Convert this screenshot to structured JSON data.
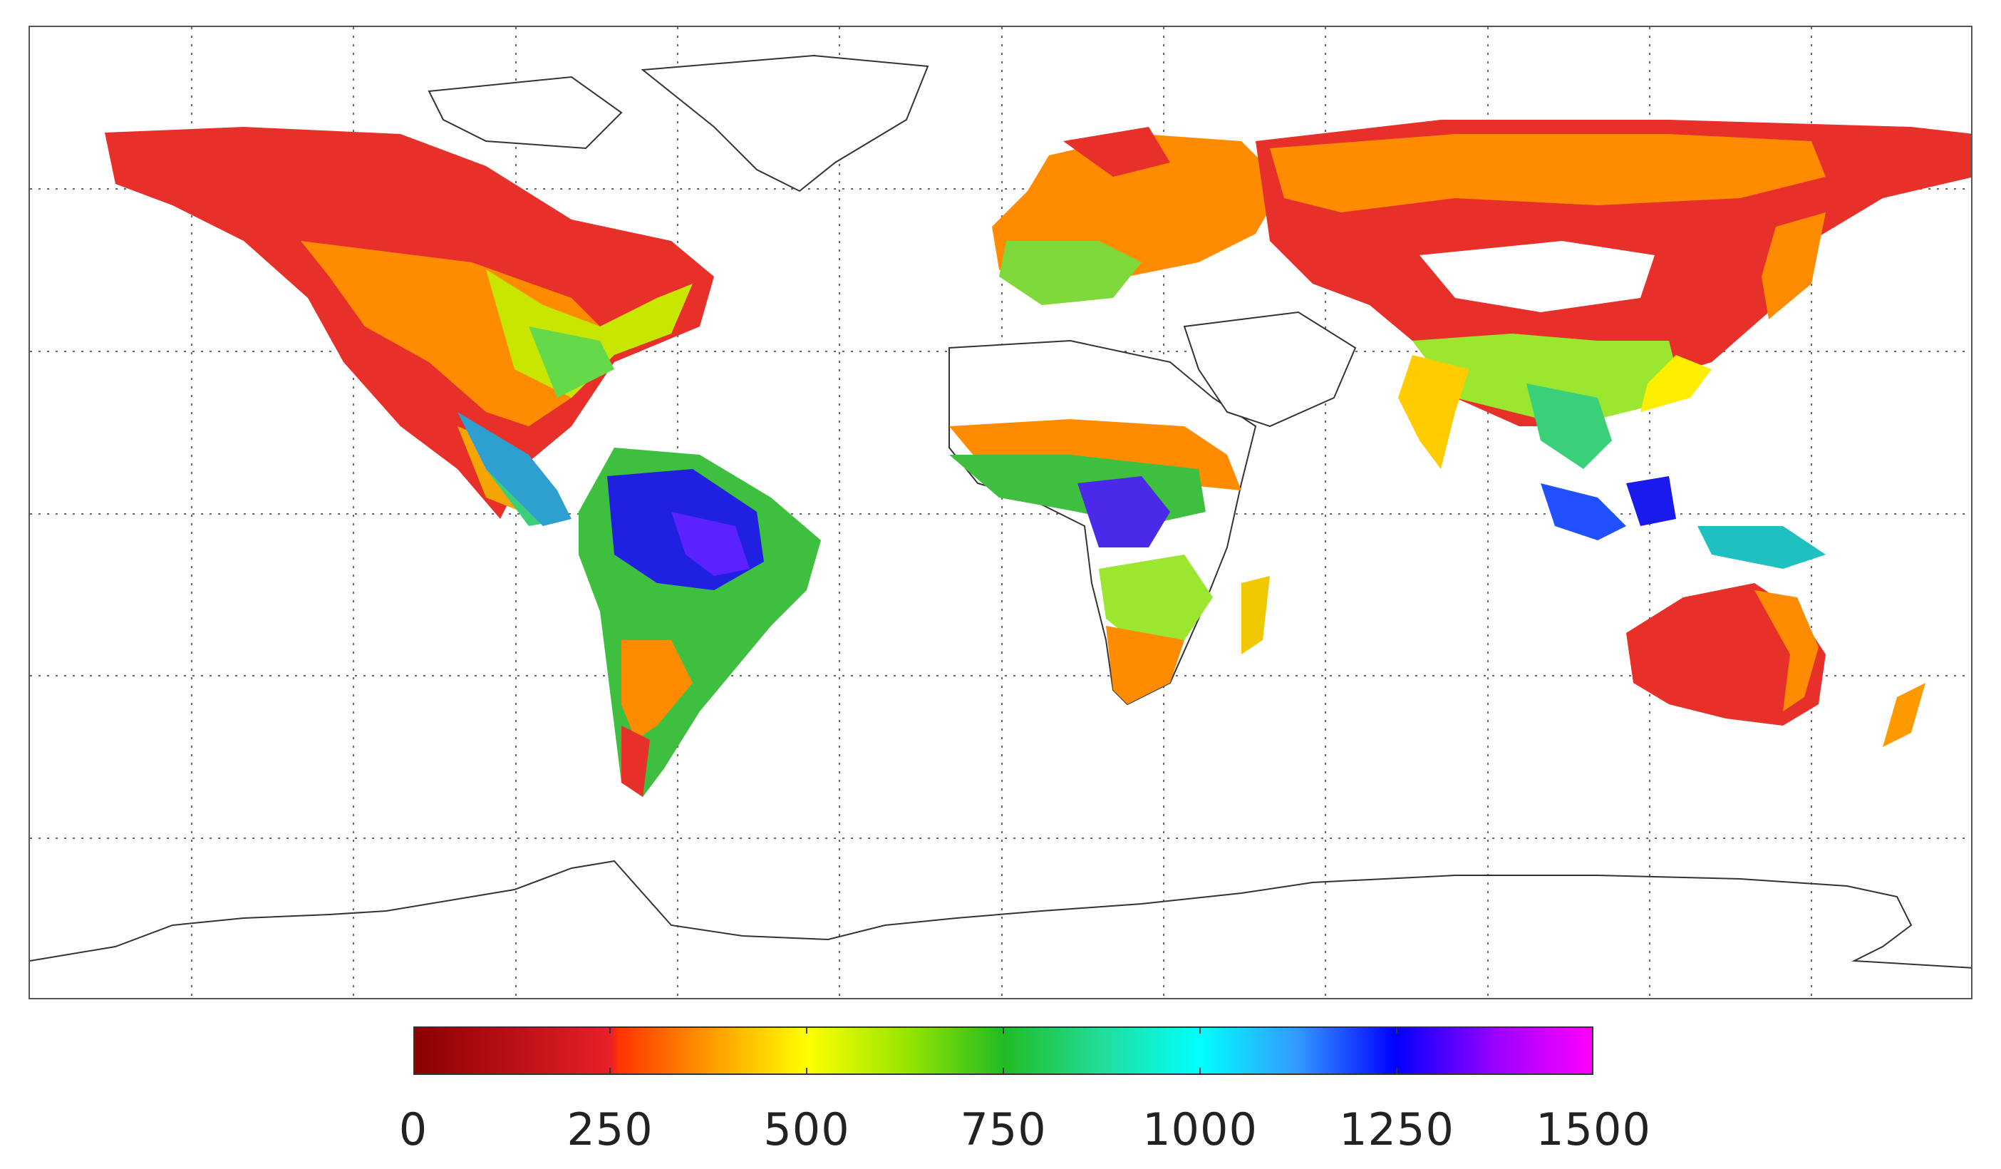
{
  "map": {
    "projection": "equirectangular",
    "grid": "dotted",
    "land_colors": {
      "desert_ice": "#ffffff",
      "coastline": "#333333"
    }
  },
  "colorbar": {
    "min": 0,
    "max": 1500,
    "colormap": [
      {
        "value": 0,
        "color": "#8b0000"
      },
      {
        "value": 250,
        "color": "#e8202a"
      },
      {
        "value": 260,
        "color": "#ff3300"
      },
      {
        "value": 375,
        "color": "#ff9900"
      },
      {
        "value": 500,
        "color": "#ffff00"
      },
      {
        "value": 625,
        "color": "#99e600"
      },
      {
        "value": 750,
        "color": "#22bb22"
      },
      {
        "value": 875,
        "color": "#22dd99"
      },
      {
        "value": 1000,
        "color": "#00ffff"
      },
      {
        "value": 1125,
        "color": "#3399ff"
      },
      {
        "value": 1250,
        "color": "#0000ff"
      },
      {
        "value": 1375,
        "color": "#9900ff"
      },
      {
        "value": 1500,
        "color": "#ff00ff"
      }
    ],
    "tick_labels": [
      "0",
      "250",
      "500",
      "750",
      "1000",
      "1250",
      "1500"
    ]
  }
}
